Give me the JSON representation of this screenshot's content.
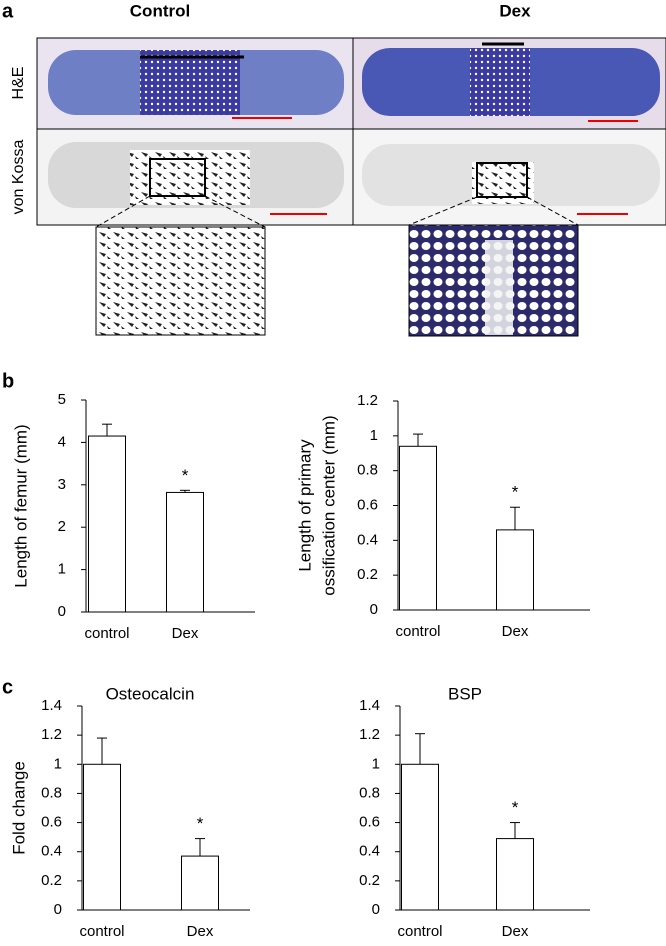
{
  "figure": {
    "panel_a": "a",
    "panel_b": "b",
    "panel_c": "c",
    "col_control": "Control",
    "col_dex": "Dex",
    "row_he": "H&E",
    "row_vonkossa": "von Kossa"
  },
  "chart_data": [
    {
      "type": "bar",
      "ylabel": [
        "Length of femur  (mm)"
      ],
      "categories": [
        "control",
        "Dex"
      ],
      "values": [
        4.15,
        2.82
      ],
      "errors": [
        0.28,
        0.05
      ],
      "significance": [
        null,
        "*"
      ],
      "ylim": [
        0,
        5
      ],
      "yticks": [
        0,
        1,
        2,
        3,
        4,
        5
      ],
      "color": "#ffffff"
    },
    {
      "type": "bar",
      "ylabel": [
        "Length of primary",
        "ossification center  (mm)"
      ],
      "categories": [
        "control",
        "Dex"
      ],
      "values": [
        0.94,
        0.46
      ],
      "errors": [
        0.07,
        0.13
      ],
      "significance": [
        null,
        "*"
      ],
      "ylim": [
        0,
        1.2
      ],
      "yticks": [
        0,
        0.2,
        0.4,
        0.6,
        0.8,
        1,
        1.2
      ],
      "color": "#ffffff"
    },
    {
      "type": "bar",
      "title": "Osteocalcin",
      "ylabel": [
        "Fold change"
      ],
      "categories": [
        "control",
        "Dex"
      ],
      "values": [
        1,
        0.37
      ],
      "errors": [
        0.18,
        0.12
      ],
      "significance": [
        null,
        "*"
      ],
      "ylim": [
        0,
        1.4
      ],
      "yticks": [
        0,
        0.2,
        0.4,
        0.6,
        0.8,
        1,
        1.2,
        1.4
      ],
      "color": "#ffffff"
    },
    {
      "type": "bar",
      "title": "BSP",
      "categories": [
        "control",
        "Dex"
      ],
      "values": [
        1,
        0.49
      ],
      "errors": [
        0.21,
        0.11
      ],
      "significance": [
        null,
        "*"
      ],
      "ylim": [
        0,
        1.4
      ],
      "yticks": [
        0,
        0.2,
        0.4,
        0.6,
        0.8,
        1,
        1.2,
        1.4
      ],
      "color": "#ffffff"
    }
  ]
}
